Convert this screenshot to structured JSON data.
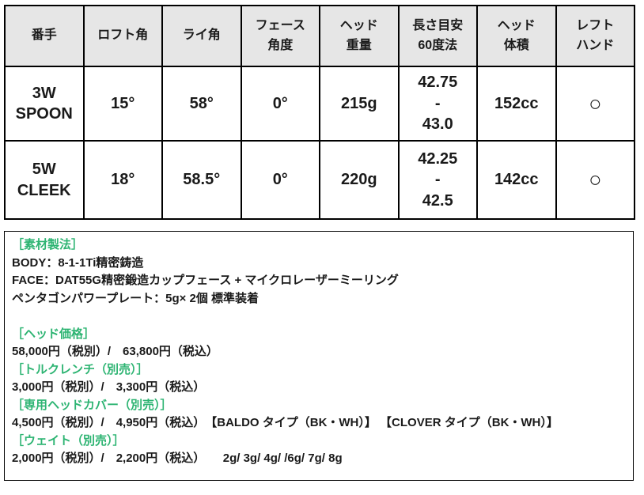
{
  "colors": {
    "accent_green": "#2db472",
    "header_bg": "#e6e6e6",
    "border": "#000000",
    "text": "#1a1a1a"
  },
  "table": {
    "header_cells": [
      "番手",
      "ロフト角",
      "ライ角",
      "フェース\n角度",
      "ヘッド\n重量",
      "長さ目安\n60度法",
      "ヘッド\n体積",
      "レフト\nハンド"
    ],
    "column_names": [
      "club-number",
      "loft-angle",
      "lie-angle",
      "face-angle",
      "head-weight",
      "length-guide-60deg",
      "head-volume",
      "left-hand"
    ],
    "rows": [
      {
        "cells": [
          "3W\nSPOON",
          "15°",
          "58°",
          "0°",
          "215g",
          "42.75\n-\n43.0",
          "152cc",
          "○"
        ]
      },
      {
        "cells": [
          "5W\nCLEEK",
          "18°",
          "58.5°",
          "0°",
          "220g",
          "42.25\n-\n42.5",
          "142cc",
          "○"
        ]
      }
    ]
  },
  "details": {
    "lines": [
      {
        "style": "heading",
        "text": "［素材製法］"
      },
      {
        "style": "text",
        "text": "BODY：8-1-1Ti精密鋳造"
      },
      {
        "style": "text",
        "text": "FACE：DAT55G精密鍛造カップフェース + マイクロレーザーミーリング"
      },
      {
        "style": "text",
        "text": "ペンタゴンパワープレート：5g× 2個 標準装着"
      },
      {
        "style": "blank",
        "text": ""
      },
      {
        "style": "heading",
        "text": "［ヘッド価格］"
      },
      {
        "style": "text",
        "text": "58,000円（税別）/　63,800円（税込）"
      },
      {
        "style": "heading",
        "text": "［トルクレンチ（別売）］"
      },
      {
        "style": "text",
        "text": "3,000円（税別）/　3,300円（税込）"
      },
      {
        "style": "heading",
        "text": "［専用ヘッドカバー（別売）］"
      },
      {
        "style": "text",
        "text": "4,500円（税別）/　4,950円（税込）　【BALDO タイプ（BK・WH）】 【CLOVER タイプ（BK・WH）】"
      },
      {
        "style": "heading",
        "text": "［ウェイト（別売）］"
      },
      {
        "style": "text",
        "text": "2,000円（税別）/　2,200円（税込）　　2g/ 3g/ 4g/ /6g/ 7g/ 8g"
      }
    ]
  }
}
